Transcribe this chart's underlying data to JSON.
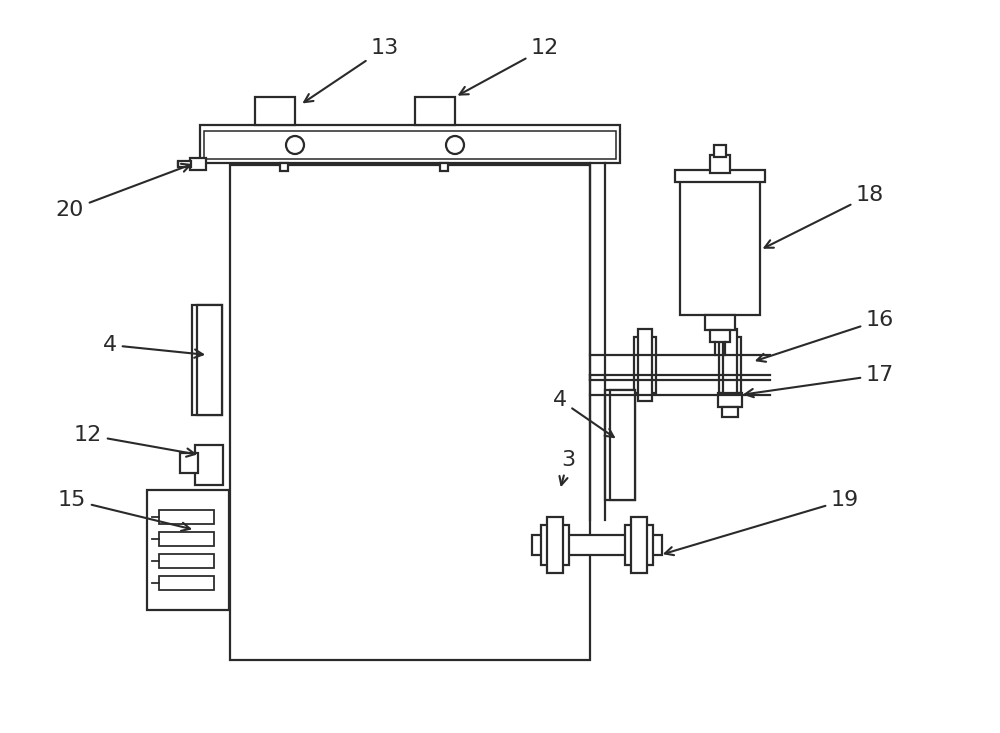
{
  "bg_color": "#ffffff",
  "line_color": "#2a2a2a",
  "lw": 1.6,
  "fig_width": 10.0,
  "fig_height": 7.33
}
